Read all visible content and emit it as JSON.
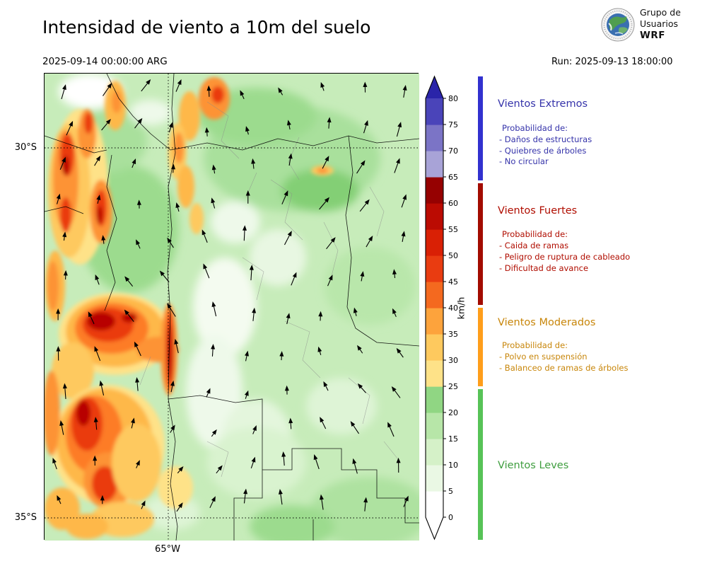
{
  "header": {
    "title": "Intensidad de viento a 10m del suelo",
    "valid_time": "2025-09-14 00:00:00 ARG",
    "run_label": "Run: 2025-09-13 18:00:00",
    "logo": {
      "line1": "Grupo de",
      "line2": "Usuarios",
      "line3": "WRF"
    }
  },
  "map_axes": {
    "lat_tick_top": "30°S",
    "lat_tick_bottom": "35°S",
    "lon_tick": "65°W"
  },
  "colorbar": {
    "unit": "km/h",
    "tick_values": [
      0,
      5,
      10,
      15,
      20,
      25,
      30,
      35,
      40,
      45,
      50,
      55,
      60,
      65,
      70,
      75,
      80
    ],
    "segment_colors": [
      "#ffffff",
      "#eaf8e4",
      "#d5f1c8",
      "#b7e6a8",
      "#90d683",
      "#fee288",
      "#fec95e",
      "#fda33c",
      "#f4691f",
      "#e93c11",
      "#d92005",
      "#bb0b02",
      "#960101",
      "#a8a3d7",
      "#7b74c6",
      "#4a44b9"
    ],
    "over_color": "#2a24a9",
    "under_color": "#ffffff"
  },
  "legend": {
    "sections": [
      {
        "title": "Vientos Extremos",
        "text_color": "#3533aa",
        "bar_color": "#3231cf",
        "intro": "Probabilidad de:",
        "items": [
          "- Daños de estructuras",
          "- Quiebres de árboles",
          "- No circular"
        ]
      },
      {
        "title": "Vientos Fuertes",
        "text_color": "#b00d00",
        "bar_color": "#a30b00",
        "intro": "Probabilidad de:",
        "items": [
          "- Caida de ramas",
          "- Peligro de ruptura de cableado",
          "- Dificultad de avance"
        ]
      },
      {
        "title": "Vientos Moderados",
        "text_color": "#c8860a",
        "bar_color": "#ff9e1b",
        "intro": "Probabilidad de:",
        "items": [
          "- Polvo en suspensión",
          "- Balanceo de ramas de árboles"
        ]
      },
      {
        "title": "Vientos Leves",
        "text_color": "#3f9e3f",
        "bar_color": "#57c357",
        "intro": "",
        "items": []
      }
    ]
  },
  "chart_data": {
    "type": "heatmap",
    "title": "Intensidad de viento a 10m del suelo",
    "valid_time": "2025-09-14 00:00:00 ARG",
    "run": "2025-09-13 18:00:00",
    "units": "km/h",
    "color_scale_ticks": [
      0,
      5,
      10,
      15,
      20,
      25,
      30,
      35,
      40,
      45,
      50,
      55,
      60,
      65,
      70,
      75,
      80
    ],
    "legend_categories": [
      "Vientos Leves",
      "Vientos Moderados",
      "Vientos Fuertes",
      "Vientos Extremos"
    ],
    "lat_ticks": [
      "30°S",
      "35°S"
    ],
    "lon_ticks": [
      "65°W"
    ]
  }
}
